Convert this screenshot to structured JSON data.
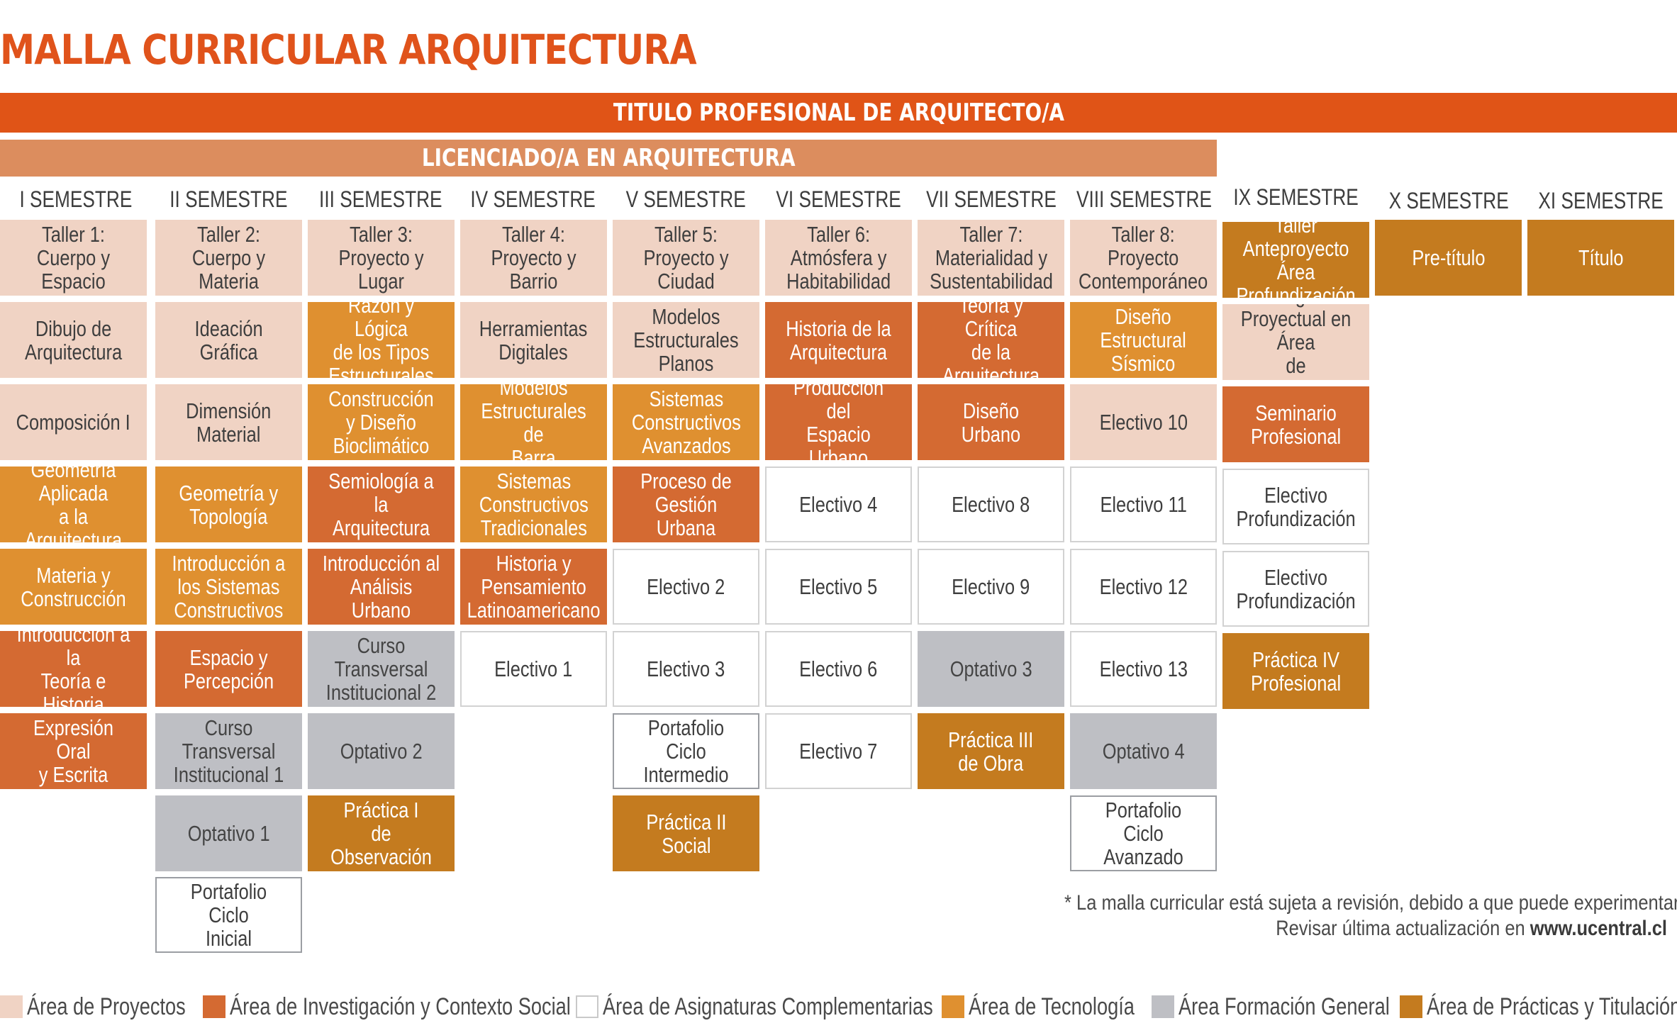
{
  "title": "MALLA CURRICULAR ARQUITECTURA",
  "degree_professional": "TITULO PROFESIONAL DE ARQUITECTO/A",
  "degree_licentiate": "LICENCIADO/A EN ARQUITECTURA",
  "semesters": [
    "I SEMESTRE",
    "II SEMESTRE",
    "III SEMESTRE",
    "IV SEMESTRE",
    "V SEMESTRE",
    "VI SEMESTRE",
    "VII SEMESTRE",
    "VIII SEMESTRE",
    "IX SEMESTRE",
    "X SEMESTRE",
    "XI SEMESTRE"
  ],
  "areas": {
    "proy": {
      "label": "Área de Proyectos",
      "color": "#f0d3c4"
    },
    "inv": {
      "label": "Área de Investigación y Contexto Social",
      "color": "#d46a32"
    },
    "comp": {
      "label": "Área de Asignaturas Complementarias",
      "color": "#ffffff"
    },
    "tec": {
      "label": "Área de Tecnología",
      "color": "#df9030"
    },
    "gen": {
      "label": "Área Formación General",
      "color": "#bebfc4"
    },
    "prac": {
      "label": "Área de Prácticas y Titulación",
      "color": "#c47b1f"
    }
  },
  "columns": [
    [
      {
        "text": "Taller 1:\nCuerpo y Espacio",
        "area": "proy"
      },
      {
        "text": "Dibujo de\nArquitectura",
        "area": "proy"
      },
      {
        "text": "Composición I",
        "area": "proy"
      },
      {
        "text": "Geometría Aplicada\na la Arquitectura",
        "area": "tec"
      },
      {
        "text": "Materia y\nConstrucción",
        "area": "tec"
      },
      {
        "text": "Introducción a la\nTeoría e Historia",
        "area": "inv"
      },
      {
        "text": "Expresión Oral\ny Escrita",
        "area": "inv"
      }
    ],
    [
      {
        "text": "Taller 2:\nCuerpo y Materia",
        "area": "proy"
      },
      {
        "text": "Ideación\nGráfica",
        "area": "proy"
      },
      {
        "text": "Dimensión\nMaterial",
        "area": "proy"
      },
      {
        "text": "Geometría y\nTopología",
        "area": "tec"
      },
      {
        "text": "Introducción a\nlos Sistemas\nConstructivos",
        "area": "tec"
      },
      {
        "text": "Espacio y\nPercepción",
        "area": "inv"
      },
      {
        "text": "Curso Transversal\nInstitucional 1",
        "area": "gen"
      },
      {
        "text": "Optativo 1",
        "area": "gen"
      },
      {
        "text": "Portafolio Ciclo\nInicial",
        "area": "port"
      }
    ],
    [
      {
        "text": "Taller 3:\nProyecto y Lugar",
        "area": "proy"
      },
      {
        "text": "Razón y Lógica\nde los Tipos\nEstructurales",
        "area": "tec"
      },
      {
        "text": "Construcción\ny Diseño\nBioclimático",
        "area": "tec"
      },
      {
        "text": "Semiología a la\nArquitectura",
        "area": "inv"
      },
      {
        "text": "Introducción al\nAnálisis Urbano",
        "area": "inv"
      },
      {
        "text": "Curso Transversal\nInstitucional 2",
        "area": "gen"
      },
      {
        "text": "Optativo 2",
        "area": "gen"
      },
      {
        "text": "Práctica I\nde Observación",
        "area": "prac"
      }
    ],
    [
      {
        "text": "Taller 4:\nProyecto y Barrio",
        "area": "proy"
      },
      {
        "text": "Herramientas\nDigitales",
        "area": "proy"
      },
      {
        "text": "Modelos\nEstructurales de\nBarra",
        "area": "tec"
      },
      {
        "text": "Sistemas\nConstructivos\nTradicionales",
        "area": "tec"
      },
      {
        "text": "Historia y\nPensamiento\nLatinoamericano",
        "area": "inv"
      },
      {
        "text": "Electivo 1",
        "area": "comp"
      }
    ],
    [
      {
        "text": "Taller 5:\nProyecto y Ciudad",
        "area": "proy"
      },
      {
        "text": "Modelos\nEstructurales\nPlanos",
        "area": "proy"
      },
      {
        "text": "Sistemas\nConstructivos\nAvanzados",
        "area": "tec"
      },
      {
        "text": "Proceso de\nGestión Urbana",
        "area": "inv"
      },
      {
        "text": "Electivo 2",
        "area": "comp"
      },
      {
        "text": "Electivo 3",
        "area": "comp"
      },
      {
        "text": "Portafolio Ciclo\nIntermedio",
        "area": "port"
      },
      {
        "text": "Práctica II\nSocial",
        "area": "prac"
      }
    ],
    [
      {
        "text": "Taller 6:\nAtmósfera y\nHabitabilidad",
        "area": "proy"
      },
      {
        "text": "Historia de la\nArquitectura",
        "area": "inv"
      },
      {
        "text": "Producción del\nEspacio Urbano",
        "area": "inv"
      },
      {
        "text": "Electivo 4",
        "area": "comp"
      },
      {
        "text": "Electivo 5",
        "area": "comp"
      },
      {
        "text": "Electivo 6",
        "area": "comp"
      },
      {
        "text": "Electivo 7",
        "area": "comp"
      }
    ],
    [
      {
        "text": "Taller 7:\nMaterialidad y\nSustentabilidad",
        "area": "proy"
      },
      {
        "text": "Teoría y Crítica\nde la Arquitectura",
        "area": "inv"
      },
      {
        "text": "Diseño Urbano",
        "area": "inv"
      },
      {
        "text": "Electivo 8",
        "area": "comp"
      },
      {
        "text": "Electivo 9",
        "area": "comp"
      },
      {
        "text": "Optativo 3",
        "area": "gen"
      },
      {
        "text": "Práctica III\nde Obra",
        "area": "prac"
      }
    ],
    [
      {
        "text": "Taller 8:\nProyecto\nContemporáneo",
        "area": "proy"
      },
      {
        "text": "Diseño\nEstructural\nSísmico",
        "area": "tec"
      },
      {
        "text": "Electivo 10",
        "area": "proy"
      },
      {
        "text": "Electivo 11",
        "area": "comp"
      },
      {
        "text": "Electivo 12",
        "area": "comp"
      },
      {
        "text": "Electivo 13",
        "area": "comp"
      },
      {
        "text": "Optativo 4",
        "area": "gen"
      },
      {
        "text": "Portafolio Ciclo\nAvanzado",
        "area": "port"
      }
    ],
    [
      {
        "text": "Taller\nAnteproyecto Área\nProfundización",
        "area": "prac"
      },
      {
        "text": "Investigación\nProyectual en Área\nde Profundización",
        "area": "proy"
      },
      {
        "text": "Seminario\nProfesional",
        "area": "inv"
      },
      {
        "text": "Electivo\nProfundización",
        "area": "comp"
      },
      {
        "text": "Electivo\nProfundización",
        "area": "comp"
      },
      {
        "text": "Práctica IV\nProfesional",
        "area": "prac"
      }
    ],
    [
      {
        "text": "Pre-título",
        "area": "prac"
      }
    ],
    [
      {
        "text": "Título",
        "area": "prac"
      }
    ]
  ],
  "note": {
    "line1": "* La malla curricular está sujeta a revisión, debido a que puede experimentar cambios.",
    "line2_prefix": "Revisar última actualización en ",
    "line2_link": "www.ucentral.cl"
  }
}
